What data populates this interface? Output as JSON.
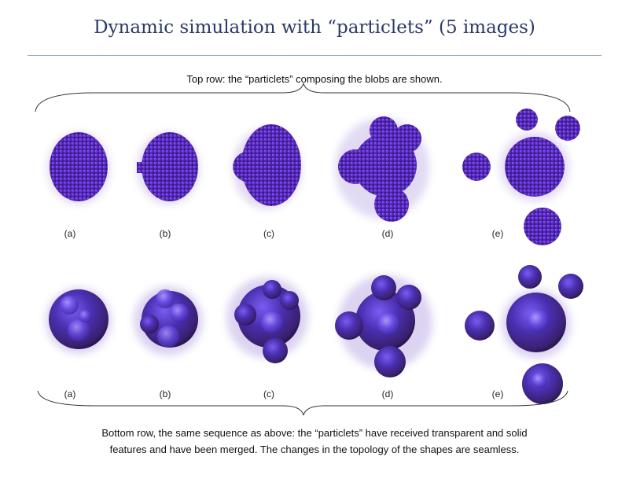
{
  "title": "Dynamic simulation with “particlets” (5 images)",
  "top_caption": "Top row: the “particlets” composing the blobs are shown.",
  "bottom_caption_line1": "Bottom row, the same sequence as above:  the “particlets” have received transparent and solid",
  "bottom_caption_line2": "features and have been merged. The changes in the topology of the shapes are seamless.",
  "top_labels": [
    "(a)",
    "(b)",
    "(c)",
    "(d)",
    "(e)"
  ],
  "bottom_labels": [
    "(a)",
    "(b)",
    "(c)",
    "(d)",
    "(e)"
  ],
  "colors": {
    "title": "#2b3a67",
    "rule": "#8fa9c7",
    "particle": "#5a22c8",
    "blob": "#4a2fb0"
  }
}
